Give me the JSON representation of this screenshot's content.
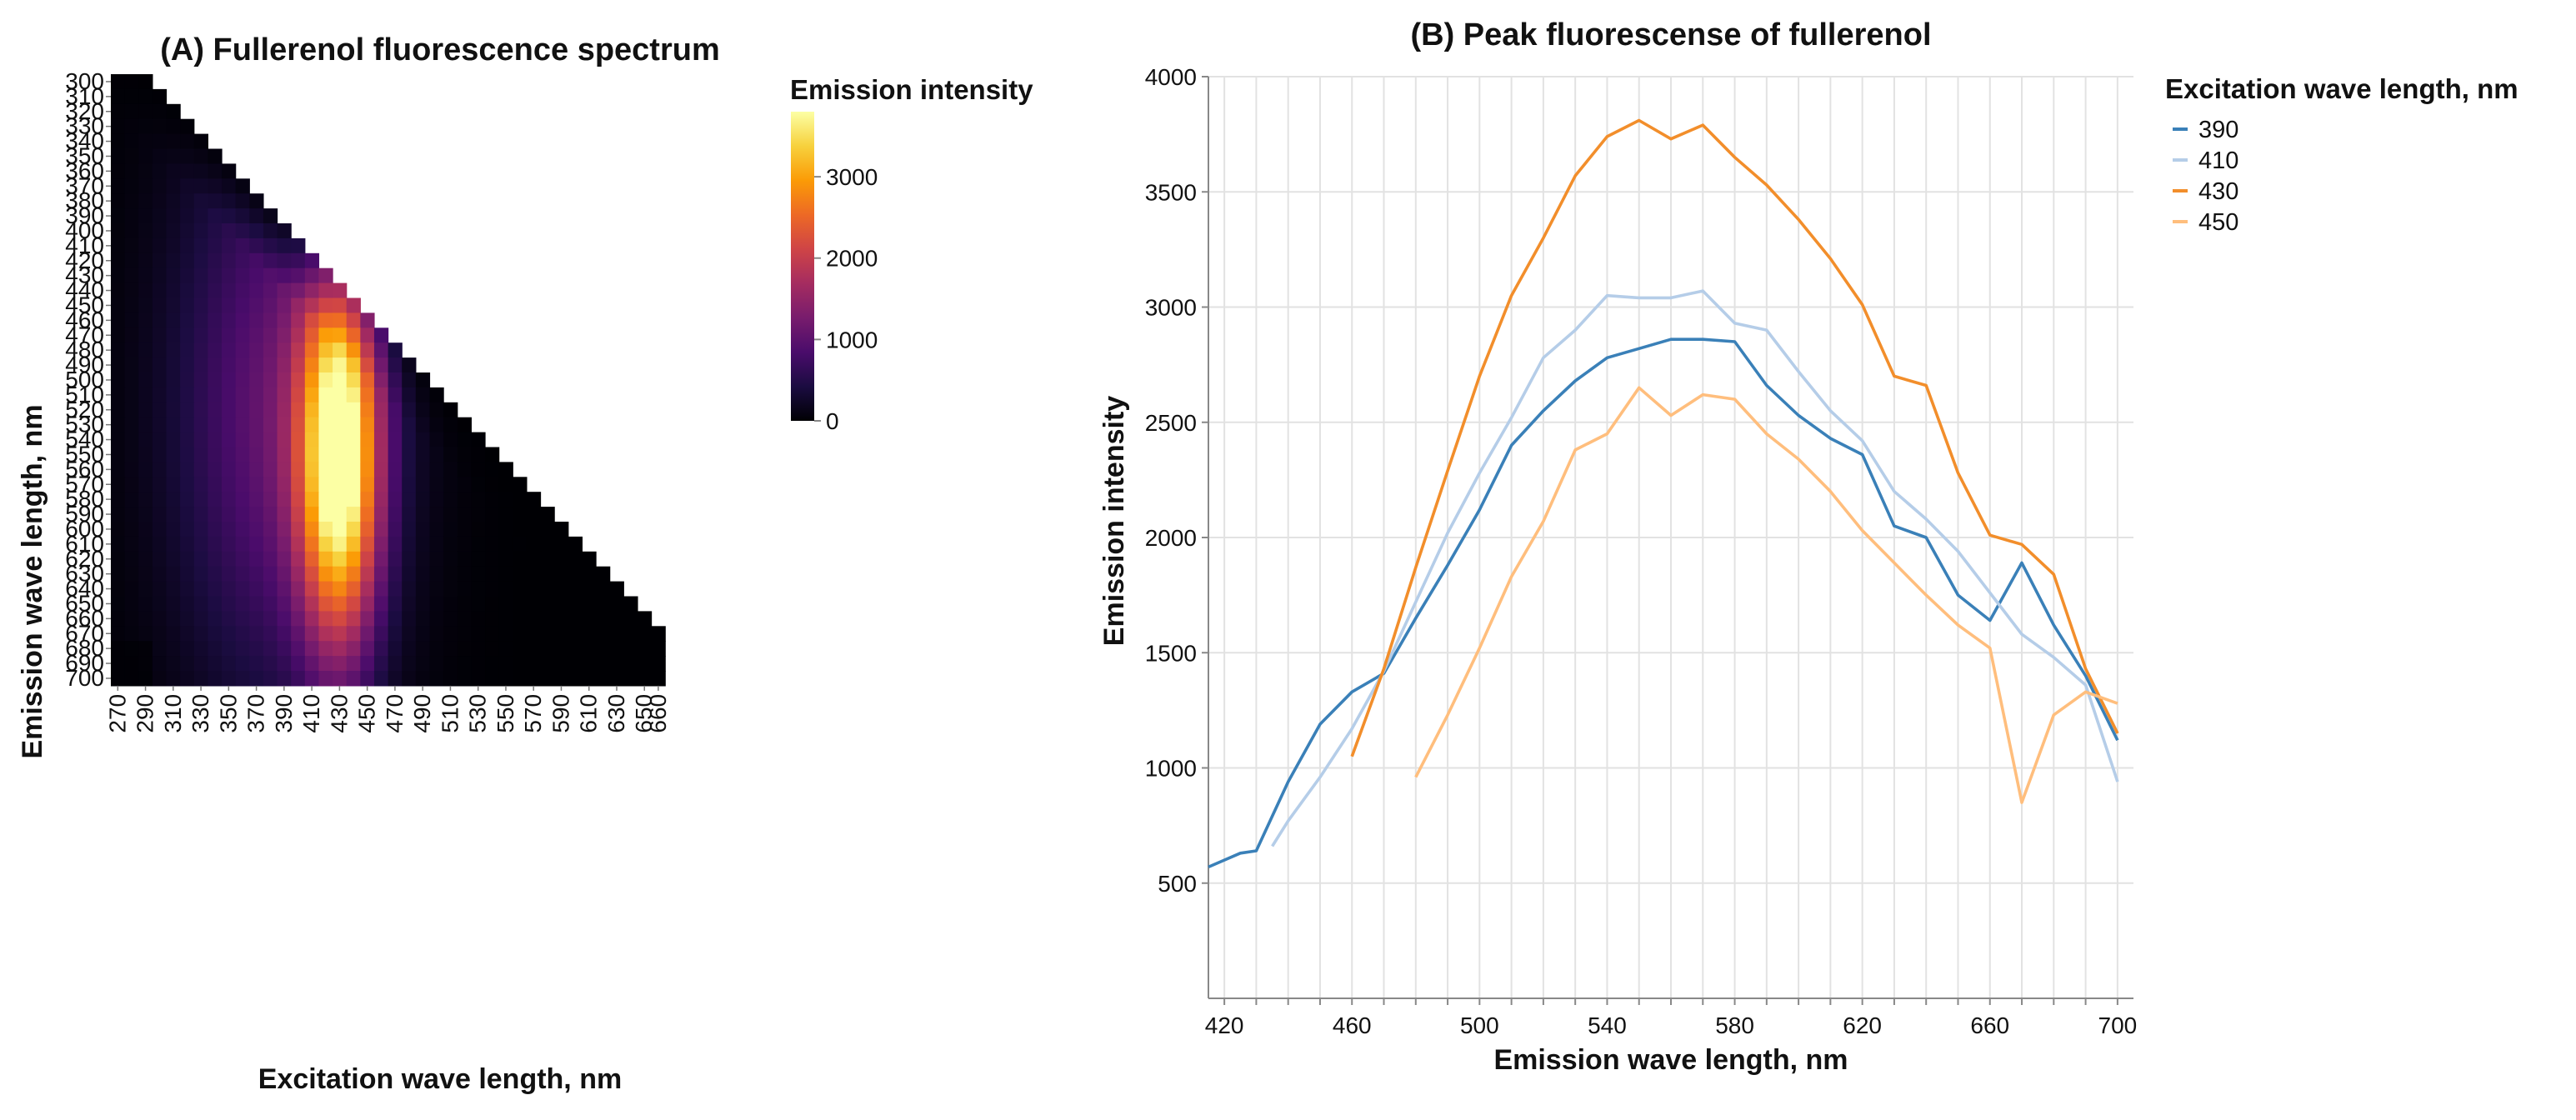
{
  "chart_data": [
    {
      "type": "heatmap",
      "title": "(A) Fullerenol fluorescence spectrum",
      "xlabel": "Excitation wave length, nm",
      "ylabel": "Emission wave length, nm",
      "x": [
        270,
        280,
        290,
        300,
        310,
        320,
        330,
        340,
        350,
        360,
        370,
        380,
        390,
        400,
        410,
        420,
        430,
        440,
        450,
        460,
        470,
        480,
        490,
        500,
        510,
        520,
        530,
        540,
        550,
        560,
        570,
        580,
        590,
        600,
        610,
        620,
        630,
        640,
        650,
        660
      ],
      "x_tick_labels": [
        "270",
        "290",
        "310",
        "330",
        "350",
        "370",
        "390",
        "410",
        "430",
        "450",
        "470",
        "490",
        "510",
        "530",
        "550",
        "570",
        "590",
        "610",
        "630",
        "650",
        "660"
      ],
      "y": [
        300,
        310,
        320,
        330,
        340,
        350,
        360,
        370,
        380,
        390,
        400,
        410,
        420,
        430,
        440,
        450,
        460,
        470,
        480,
        490,
        500,
        510,
        520,
        530,
        540,
        550,
        560,
        570,
        580,
        590,
        600,
        610,
        620,
        630,
        640,
        650,
        660,
        670,
        680,
        690,
        700
      ],
      "y_tick_labels": [
        "300",
        "310",
        "320",
        "330",
        "340",
        "350",
        "360",
        "370",
        "380",
        "390",
        "400",
        "410",
        "420",
        "430",
        "440",
        "450",
        "460",
        "470",
        "480",
        "490",
        "500",
        "510",
        "520",
        "530",
        "540",
        "550",
        "560",
        "570",
        "580",
        "590",
        "600",
        "610",
        "620",
        "630",
        "640",
        "650",
        "660",
        "670",
        "680",
        "690",
        "700"
      ],
      "cells": "defined where emission > excitation; peak near excitation 430 nm, emission 550 nm",
      "colorbar": {
        "title": "Emission intensity",
        "range": [
          0,
          3800
        ],
        "tick_labels": [
          "3000",
          "2000",
          "1000",
          "0"
        ],
        "ticks": [
          3000,
          2000,
          1000,
          0
        ],
        "colors": [
          "#000004",
          "#1b0c41",
          "#4a0c6b",
          "#781c6d",
          "#a52c60",
          "#cf4446",
          "#ed6925",
          "#fb9b06",
          "#f7d13d",
          "#fcffa4"
        ]
      }
    },
    {
      "type": "line",
      "title": "(B) Peak fluorescense of fullerenol",
      "xlabel": "Emission wave length, nm",
      "ylabel": "Emission intensity",
      "xlim": [
        415,
        705
      ],
      "ylim": [
        0,
        4000
      ],
      "x_ticks": [
        420,
        460,
        500,
        540,
        580,
        620,
        660,
        700
      ],
      "x_tick_labels": [
        "420",
        "460",
        "500",
        "540",
        "580",
        "620",
        "660",
        "700"
      ],
      "y_ticks": [
        500,
        1000,
        1500,
        2000,
        2500,
        3000,
        3500,
        4000
      ],
      "y_tick_labels": [
        "500",
        "1000",
        "1500",
        "2000",
        "2500",
        "3000",
        "3500",
        "4000"
      ],
      "legend_title": "Excitation wave length, nm",
      "series": [
        {
          "name": "390",
          "color": "#3a80b8",
          "x": [
            415,
            420,
            425,
            430,
            440,
            450,
            460,
            470,
            480,
            490,
            500,
            510,
            520,
            530,
            540,
            550,
            560,
            570,
            580,
            590,
            600,
            610,
            620,
            630,
            640,
            650,
            660,
            670,
            680,
            690,
            700
          ],
          "values": [
            570,
            600,
            630,
            640,
            940,
            1190,
            1330,
            1410,
            1650,
            1880,
            2120,
            2400,
            2550,
            2680,
            2780,
            2820,
            2860,
            2860,
            2850,
            2660,
            2530,
            2430,
            2360,
            2050,
            2000,
            1750,
            1640,
            1890,
            1620,
            1400,
            1120
          ]
        },
        {
          "name": "410",
          "color": "#b5cde8",
          "x": [
            435,
            440,
            450,
            460,
            470,
            480,
            490,
            500,
            510,
            520,
            530,
            540,
            550,
            560,
            570,
            580,
            590,
            600,
            610,
            620,
            630,
            640,
            650,
            660,
            670,
            680,
            690,
            700
          ],
          "values": [
            660,
            770,
            960,
            1170,
            1420,
            1720,
            2020,
            2280,
            2520,
            2780,
            2900,
            3050,
            3040,
            3040,
            3070,
            2930,
            2900,
            2720,
            2550,
            2420,
            2200,
            2080,
            1940,
            1760,
            1580,
            1480,
            1360,
            940
          ]
        },
        {
          "name": "430",
          "color": "#f28e2b",
          "x": [
            460,
            470,
            480,
            490,
            500,
            510,
            520,
            530,
            540,
            550,
            560,
            570,
            580,
            590,
            600,
            610,
            620,
            630,
            640,
            650,
            660,
            670,
            680,
            690,
            700
          ],
          "values": [
            1050,
            1430,
            1870,
            2290,
            2700,
            3050,
            3300,
            3570,
            3740,
            3810,
            3730,
            3790,
            3650,
            3530,
            3380,
            3210,
            3010,
            2700,
            2660,
            2280,
            2010,
            1970,
            1840,
            1430,
            1150
          ]
        },
        {
          "name": "450",
          "color": "#ffbe7d",
          "x": [
            480,
            490,
            500,
            510,
            520,
            530,
            540,
            550,
            560,
            570,
            580,
            590,
            600,
            610,
            620,
            630,
            640,
            650,
            660,
            670,
            680,
            690,
            700
          ],
          "values": [
            960,
            1230,
            1520,
            1830,
            2070,
            2380,
            2450,
            2650,
            2530,
            2620,
            2600,
            2450,
            2340,
            2200,
            2030,
            1890,
            1750,
            1620,
            1520,
            850,
            1230,
            1330,
            1280
          ]
        }
      ]
    }
  ]
}
